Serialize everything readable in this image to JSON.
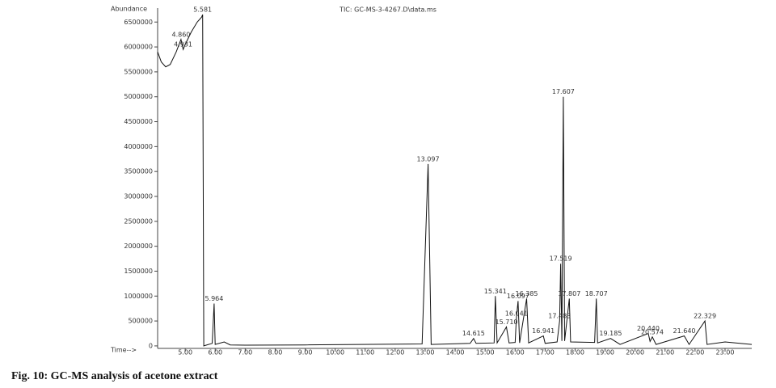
{
  "chart_data": {
    "type": "line",
    "title": "TIC: GC-MS-3-4267.D\\data.ms",
    "ylabel": "Abundance",
    "xlabel": "Time-->",
    "caption": "Fig. 10: GC-MS analysis of acetone extract",
    "color": "#111111",
    "label_color": "#2b2b9a",
    "xlim": [
      4.08,
      23.89
    ],
    "ylim": [
      -50000,
      6780000
    ],
    "xticks": [
      {
        "value": 5,
        "label": "5.00"
      },
      {
        "value": 6,
        "label": "6.00"
      },
      {
        "value": 7,
        "label": "7.00"
      },
      {
        "value": 8,
        "label": "8.00"
      },
      {
        "value": 9,
        "label": "9.00"
      },
      {
        "value": 10,
        "label": "10.00"
      },
      {
        "value": 11,
        "label": "11.00"
      },
      {
        "value": 12,
        "label": "12.00"
      },
      {
        "value": 13,
        "label": "13.00"
      },
      {
        "value": 14,
        "label": "14.00"
      },
      {
        "value": 15,
        "label": "15.00"
      },
      {
        "value": 16,
        "label": "16.00"
      },
      {
        "value": 17,
        "label": "17.00"
      },
      {
        "value": 18,
        "label": "18.00"
      },
      {
        "value": 19,
        "label": "19.00"
      },
      {
        "value": 20,
        "label": "20.00"
      },
      {
        "value": 21,
        "label": "21.00"
      },
      {
        "value": 22,
        "label": "22.00"
      },
      {
        "value": 23,
        "label": "23.00"
      }
    ],
    "yticks": [
      0,
      500000,
      1000000,
      1500000,
      2000000,
      2500000,
      3000000,
      3500000,
      4000000,
      4500000,
      5000000,
      5500000,
      6000000,
      6500000
    ],
    "x": [
      4.08,
      4.2,
      4.35,
      4.5,
      4.7,
      4.86,
      4.931,
      5.0,
      5.2,
      5.4,
      5.55,
      5.581,
      5.62,
      5.9,
      5.964,
      6.0,
      6.3,
      6.5,
      7.0,
      9.0,
      12.9,
      13.097,
      13.2,
      14.5,
      14.615,
      14.7,
      15.3,
      15.341,
      15.4,
      15.71,
      15.8,
      16.0,
      16.041,
      16.097,
      16.15,
      16.385,
      16.45,
      16.941,
      17.0,
      17.4,
      17.483,
      17.519,
      17.56,
      17.607,
      17.65,
      17.807,
      17.85,
      18.65,
      18.707,
      18.75,
      19.185,
      19.5,
      20.44,
      20.5,
      20.574,
      20.7,
      21.64,
      21.8,
      22.329,
      22.4,
      23.0,
      23.89
    ],
    "values": [
      5900000,
      5700000,
      5600000,
      5650000,
      5900000,
      6150000,
      5950000,
      6050000,
      6300000,
      6500000,
      6600000,
      6650000,
      0,
      50000,
      850000,
      30000,
      80000,
      20000,
      15000,
      20000,
      40000,
      3650000,
      30000,
      50000,
      150000,
      50000,
      60000,
      1000000,
      60000,
      380000,
      60000,
      70000,
      550000,
      900000,
      60000,
      950000,
      60000,
      200000,
      50000,
      80000,
      500000,
      1650000,
      100000,
      5000000,
      100000,
      950000,
      80000,
      70000,
      950000,
      60000,
      150000,
      30000,
      250000,
      90000,
      180000,
      30000,
      200000,
      30000,
      500000,
      30000,
      80000,
      30000
    ],
    "peak_labels": [
      "4.860",
      "4.931",
      "5.581",
      "5.964",
      "13.097",
      "14.615",
      "15.341",
      "15.710",
      "16.041",
      "16.097",
      "16.385",
      "16.941",
      "17.483",
      "17.519",
      "17.607",
      "17.807",
      "18.707",
      "19.185",
      "20.440",
      "20.574",
      "21.640",
      "22.329"
    ]
  }
}
